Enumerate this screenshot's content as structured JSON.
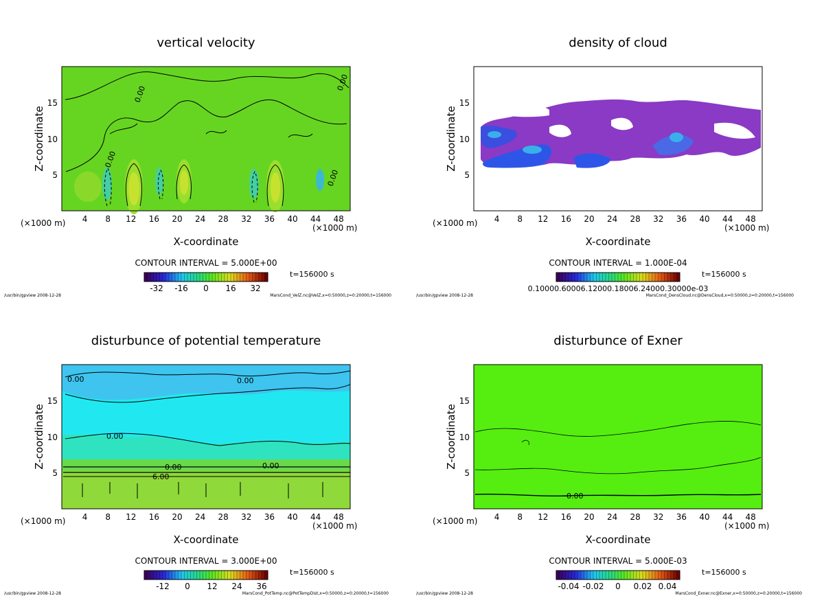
{
  "chart_data": [
    {
      "type": "heatmap",
      "title": "vertical velocity",
      "xlabel": "X-coordinate",
      "ylabel": "Z-coordinate",
      "x_unit_left": "(×1000 m)",
      "x_unit_right": "(×1000 m)",
      "xlim": [
        0,
        50
      ],
      "ylim": [
        0,
        20
      ],
      "xticks": [
        "4",
        "8",
        "12",
        "16",
        "20",
        "24",
        "28",
        "32",
        "36",
        "40",
        "44",
        "48"
      ],
      "yticks": [
        "5",
        "10",
        "15"
      ],
      "contour_label": "0.00",
      "contour_interval": "CONTOUR INTERVAL = 5.000E+00",
      "time": "t=156000 s",
      "colorbar_range": [
        -40,
        40
      ],
      "colorbar_ticks": [
        "-32",
        "-16",
        "0",
        "16",
        "32"
      ],
      "footer_left": "/usr/bin/gpview  2008-12-28",
      "footer_right": "MarsCond_VelZ.nc@VelZ,x=0:50000,z=0:20000,t=156000"
    },
    {
      "type": "heatmap",
      "title": "density of cloud",
      "xlabel": "X-coordinate",
      "ylabel": "Z-coordinate",
      "x_unit_left": "(×1000 m)",
      "x_unit_right": "(×1000 m)",
      "xlim": [
        0,
        50
      ],
      "ylim": [
        0,
        20
      ],
      "xticks": [
        "4",
        "8",
        "12",
        "16",
        "20",
        "24",
        "28",
        "32",
        "36",
        "40",
        "44",
        "48"
      ],
      "yticks": [
        "5",
        "10",
        "15"
      ],
      "contour_interval": "CONTOUR INTERVAL = 1.000E-04",
      "time": "t=156000 s",
      "colorbar_ticks_text": "0.10000.60006.12000.18006.24000.30000e-03",
      "footer_left": "/usr/bin/gpview  2008-12-28",
      "footer_right": "MarsCond_DensCloud.nc@DensCloud,x=0:50000,z=0:20000,t=156000"
    },
    {
      "type": "heatmap",
      "title": "disturbunce of potential temperature",
      "xlabel": "X-coordinate",
      "ylabel": "Z-coordinate",
      "x_unit_left": "(×1000 m)",
      "x_unit_right": "(×1000 m)",
      "xlim": [
        0,
        50
      ],
      "ylim": [
        0,
        20
      ],
      "xticks": [
        "4",
        "8",
        "12",
        "16",
        "20",
        "24",
        "28",
        "32",
        "36",
        "40",
        "44",
        "48"
      ],
      "yticks": [
        "5",
        "10",
        "15"
      ],
      "contour_label": "0.00",
      "contour_label_2": "6.00",
      "contour_interval": "CONTOUR INTERVAL = 3.000E+00",
      "time": "t=156000 s",
      "colorbar_range": [
        -18,
        42
      ],
      "colorbar_ticks": [
        "-12",
        "0",
        "12",
        "24",
        "36"
      ],
      "footer_left": "/usr/bin/gpview  2008-12-28",
      "footer_right": "MarsCond_PotTemp.nc@PotTempDist,x=0:50000,z=0:20000,t=156000"
    },
    {
      "type": "heatmap",
      "title": "disturbunce of Exner",
      "xlabel": "X-coordinate",
      "ylabel": "Z-coordinate",
      "x_unit_left": "(×1000 m)",
      "x_unit_right": "(×1000 m)",
      "xlim": [
        0,
        50
      ],
      "ylim": [
        0,
        20
      ],
      "xticks": [
        "4",
        "8",
        "12",
        "16",
        "20",
        "24",
        "28",
        "32",
        "36",
        "40",
        "44",
        "48"
      ],
      "yticks": [
        "5",
        "10",
        "15"
      ],
      "contour_label": "0.00",
      "contour_interval": "CONTOUR INTERVAL = 5.000E-03",
      "time": "t=156000 s",
      "colorbar_range": [
        -0.05,
        0.05
      ],
      "colorbar_ticks": [
        "-0.04",
        "-0.02",
        "0",
        "0.02",
        "0.04"
      ],
      "footer_left": "/usr/bin/gpview  2008-12-28",
      "footer_right": "MarsCond_Exner.nc@Exner,x=0:50000,z=0:20000,t=156000"
    }
  ]
}
